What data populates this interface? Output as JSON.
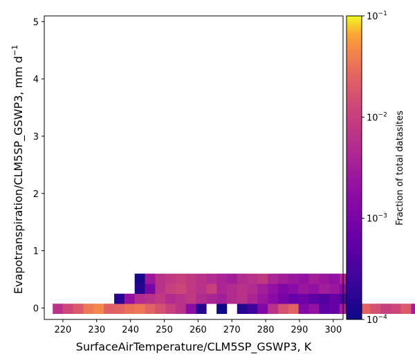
{
  "chart_data": {
    "type": "heatmap",
    "xlabel": "SurfaceAirTemperature/CLM5SP_GSWP3,  K",
    "ylabel": "Evapotranspiration/CLM5SP_GSWP3,  mm d",
    "ylabel_exp": "−1",
    "colorbar_label": "Fraction of total datasites",
    "colormap": "plasma",
    "color_scale": "log",
    "color_range": [
      0.0001,
      0.1
    ],
    "colorbar_ticks": [
      {
        "base": "10",
        "exp": "−1",
        "value": 0.1
      },
      {
        "base": "10",
        "exp": "−2",
        "value": 0.01
      },
      {
        "base": "10",
        "exp": "−3",
        "value": 0.001
      },
      {
        "base": "10",
        "exp": "−4",
        "value": 0.0001
      }
    ],
    "xlim": [
      214.5,
      302.9
    ],
    "ylim": [
      -0.2,
      5.1
    ],
    "xticks": [
      "220",
      "230",
      "240",
      "250",
      "260",
      "270",
      "280",
      "290",
      "300"
    ],
    "xtick_values": [
      220,
      230,
      240,
      250,
      260,
      270,
      280,
      290,
      300
    ],
    "yticks": [
      "0",
      "1",
      "2",
      "3",
      "4",
      "5"
    ],
    "ytick_values": [
      0,
      1,
      2,
      3,
      4,
      5
    ],
    "grid": false,
    "bin_width_x": 3.03,
    "bin_height_y": 0.175,
    "x_bin_start": 217.0,
    "y_bin_start": -0.1,
    "log_values_by_row": [
      {
        "row": 0,
        "cells": [
          [
            0,
            -2.2
          ],
          [
            1,
            -1.9
          ],
          [
            2,
            -1.7
          ],
          [
            3,
            -1.45
          ],
          [
            4,
            -1.35
          ],
          [
            5,
            -1.65
          ],
          [
            6,
            -1.6
          ],
          [
            7,
            -1.5
          ],
          [
            8,
            -1.45
          ],
          [
            9,
            -1.6
          ],
          [
            10,
            -1.8
          ],
          [
            11,
            -2.0
          ],
          [
            12,
            -2.2
          ],
          [
            13,
            -2.8
          ],
          [
            14,
            -3.8
          ],
          [
            16,
            -4.0
          ],
          [
            18,
            -3.8
          ],
          [
            19,
            -3.6
          ],
          [
            20,
            -2.9
          ],
          [
            21,
            -2.2
          ],
          [
            22,
            -1.8
          ],
          [
            23,
            -1.6
          ],
          [
            24,
            -2.9
          ],
          [
            25,
            -2.7
          ],
          [
            26,
            -3.3
          ],
          [
            27,
            -3.2
          ],
          [
            28,
            -2.5
          ],
          [
            29,
            -1.8
          ],
          [
            30,
            -1.6
          ],
          [
            31,
            -1.8
          ],
          [
            32,
            -2.0
          ],
          [
            33,
            -1.9
          ],
          [
            34,
            -1.7
          ],
          [
            35,
            -2.5
          ],
          [
            36,
            -3.1
          ],
          [
            37,
            -3.8
          ],
          [
            38,
            -3.3
          ],
          [
            39,
            -3.1
          ],
          [
            40,
            -3.2
          ],
          [
            41,
            -3.0
          ],
          [
            42,
            -3.8
          ],
          [
            43,
            -3.6
          ],
          [
            44,
            -2.8
          ],
          [
            45,
            -2.5
          ],
          [
            46,
            -1.9
          ],
          [
            47,
            -1.5
          ],
          [
            48,
            -3.4
          ],
          [
            49,
            -3.5
          ],
          [
            50,
            -3.0
          ],
          [
            51,
            -2.9
          ],
          [
            52,
            -2.8
          ],
          [
            53,
            -3.1
          ],
          [
            54,
            -3.6
          ],
          [
            55,
            -2.2
          ],
          [
            56,
            -3.7
          ],
          [
            57,
            -2.1
          ],
          [
            58,
            -1.9
          ]
        ]
      },
      {
        "row": 1,
        "cells": [
          [
            6,
            -3.8
          ],
          [
            7,
            -2.7
          ],
          [
            8,
            -2.3
          ],
          [
            9,
            -2.2
          ],
          [
            10,
            -2.1
          ],
          [
            11,
            -2.3
          ],
          [
            12,
            -2.2
          ],
          [
            13,
            -2.1
          ],
          [
            14,
            -2.3
          ],
          [
            15,
            -2.4
          ],
          [
            16,
            -2.5
          ],
          [
            17,
            -2.3
          ],
          [
            18,
            -2.2
          ],
          [
            19,
            -2.4
          ],
          [
            20,
            -2.6
          ],
          [
            21,
            -2.8
          ],
          [
            22,
            -3.0
          ],
          [
            23,
            -3.2
          ],
          [
            24,
            -3.1
          ],
          [
            25,
            -3.3
          ],
          [
            26,
            -3.4
          ],
          [
            27,
            -3.2
          ],
          [
            28,
            -3.5
          ]
        ]
      },
      {
        "row": 2,
        "cells": [
          [
            8,
            -3.8
          ],
          [
            9,
            -3.0
          ],
          [
            10,
            -2.2
          ],
          [
            11,
            -2.0
          ],
          [
            12,
            -1.9
          ],
          [
            13,
            -2.1
          ],
          [
            14,
            -2.2
          ],
          [
            15,
            -2.0
          ],
          [
            16,
            -2.4
          ],
          [
            17,
            -2.3
          ],
          [
            18,
            -2.2
          ],
          [
            19,
            -2.3
          ],
          [
            20,
            -2.5
          ],
          [
            21,
            -2.7
          ],
          [
            22,
            -2.9
          ],
          [
            23,
            -2.8
          ],
          [
            24,
            -2.6
          ],
          [
            25,
            -2.7
          ],
          [
            26,
            -2.5
          ],
          [
            27,
            -2.6
          ],
          [
            28,
            -2.8
          ]
        ]
      },
      {
        "row": 3,
        "cells": [
          [
            8,
            -3.9
          ],
          [
            9,
            -2.6
          ],
          [
            10,
            -2.2
          ],
          [
            11,
            -2.1
          ],
          [
            12,
            -2.0
          ],
          [
            13,
            -2.1
          ],
          [
            14,
            -2.2
          ],
          [
            15,
            -2.3
          ],
          [
            16,
            -2.4
          ],
          [
            17,
            -2.5
          ],
          [
            18,
            -2.3
          ],
          [
            19,
            -2.2
          ],
          [
            20,
            -2.1
          ],
          [
            21,
            -2.4
          ],
          [
            22,
            -2.5
          ],
          [
            23,
            -2.6
          ],
          [
            24,
            -2.7
          ],
          [
            25,
            -2.5
          ],
          [
            26,
            -2.6
          ],
          [
            27,
            -2.7
          ],
          [
            28,
            -2.4
          ]
        ]
      }
    ]
  }
}
